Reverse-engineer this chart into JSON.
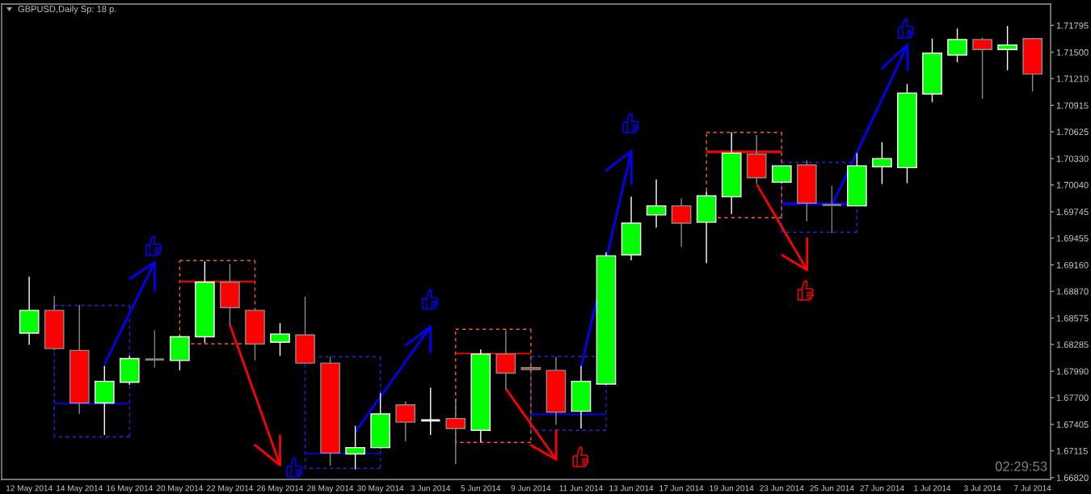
{
  "chart_data": {
    "type": "candlestick",
    "title": "GBPUSD,Daily Sp: 18 p.",
    "categories": [
      "12 May 2014",
      null,
      "14 May 2014",
      null,
      "16 May 2014",
      null,
      "20 May 2014",
      null,
      "22 May 2014",
      null,
      "26 May 2014",
      null,
      "28 May 2014",
      null,
      "30 May 2014",
      null,
      "3 Jun 2014",
      null,
      "5 Jun 2014",
      null,
      "9 Jun 2014",
      null,
      "11 Jun 2014",
      null,
      "13 Jun 2014",
      null,
      "17 Jun 2014",
      null,
      "19 Jun 2014",
      null,
      "23 Jun 2014",
      null,
      "25 Jun 2014",
      null,
      "27 Jun 2014",
      null,
      "1 Jul 2014",
      null,
      "3 Jul 2014",
      null,
      "7 Jul 2014"
    ],
    "ohlc": [
      [
        1.6841,
        1.6903,
        1.6828,
        1.6866
      ],
      [
        1.6866,
        1.6882,
        1.6822,
        1.6824
      ],
      [
        1.6822,
        1.6872,
        1.6752,
        1.6764
      ],
      [
        1.6764,
        1.6805,
        1.6729,
        1.6788
      ],
      [
        1.6787,
        1.6816,
        1.6784,
        1.6813
      ],
      [
        1.6812,
        1.6844,
        1.6803,
        1.6812
      ],
      [
        1.6811,
        1.6838,
        1.68,
        1.6837
      ],
      [
        1.6837,
        1.692,
        1.683,
        1.6897
      ],
      [
        1.6897,
        1.6917,
        1.685,
        1.6869
      ],
      [
        1.6866,
        1.6868,
        1.6811,
        1.6829
      ],
      [
        1.6831,
        1.6852,
        1.6816,
        1.684
      ],
      [
        1.6839,
        1.6881,
        1.6807,
        1.6808
      ],
      [
        1.6808,
        1.6815,
        1.6695,
        1.6709
      ],
      [
        1.6708,
        1.6739,
        1.6691,
        1.6715
      ],
      [
        1.6715,
        1.6775,
        1.6714,
        1.6752
      ],
      [
        1.6762,
        1.6766,
        1.6722,
        1.6743
      ],
      [
        1.6745,
        1.6781,
        1.6729,
        1.6745
      ],
      [
        1.6747,
        1.6769,
        1.6697,
        1.6736
      ],
      [
        1.6734,
        1.6823,
        1.6721,
        1.6818
      ],
      [
        1.6818,
        1.6844,
        1.6779,
        1.6797
      ],
      [
        1.6803,
        1.6805,
        1.6799,
        1.6801
      ],
      [
        1.68,
        1.6815,
        1.674,
        1.6754
      ],
      [
        1.6755,
        1.6805,
        1.6736,
        1.6788
      ],
      [
        1.6785,
        1.693,
        1.6784,
        1.6926
      ],
      [
        1.6927,
        1.6991,
        1.6921,
        1.6962
      ],
      [
        1.6971,
        1.701,
        1.6957,
        1.6981
      ],
      [
        1.6981,
        1.6989,
        1.6936,
        1.6962
      ],
      [
        1.6963,
        1.6997,
        1.6918,
        1.6992
      ],
      [
        1.6991,
        1.7062,
        1.6972,
        1.7039
      ],
      [
        1.7038,
        1.7059,
        1.7005,
        1.7012
      ],
      [
        1.7007,
        1.7025,
        1.7006,
        1.7025
      ],
      [
        1.7026,
        1.7031,
        1.6964,
        1.6984
      ],
      [
        1.6982,
        1.7003,
        1.6951,
        1.6982
      ],
      [
        1.6981,
        1.7039,
        1.6981,
        1.7025
      ],
      [
        1.7024,
        1.7051,
        1.7005,
        1.7033
      ],
      [
        1.7023,
        1.7115,
        1.7006,
        1.7105
      ],
      [
        1.7104,
        1.7165,
        1.7095,
        1.7149
      ],
      [
        1.7147,
        1.7176,
        1.7139,
        1.7164
      ],
      [
        1.7164,
        1.7166,
        1.7099,
        1.7153
      ],
      [
        1.7153,
        1.7179,
        1.713,
        1.7158
      ],
      [
        1.7165,
        1.7166,
        1.7107,
        1.7126
      ]
    ],
    "colors": [
      "#00ff00",
      "#ff0000",
      "#ff0000",
      "#00ff00",
      "#00ff00",
      "#808080",
      "#00ff00",
      "#00ff00",
      "#ff0000",
      "#ff0000",
      "#00ff00",
      "#ff0000",
      "#ff0000",
      "#00ff00",
      "#00ff00",
      "#ff0000",
      "#ffffff",
      "#ff0000",
      "#00ff00",
      "#ff0000",
      "#ff0000",
      "#ff0000",
      "#00ff00",
      "#00ff00",
      "#00ff00",
      "#00ff00",
      "#ff0000",
      "#00ff00",
      "#00ff00",
      "#ff0000",
      "#00ff00",
      "#ff0000",
      "#808080",
      "#00ff00",
      "#00ff00",
      "#00ff00",
      "#00ff00",
      "#00ff00",
      "#ff0000",
      "#00ff00",
      "#ff0000"
    ],
    "ylim": [
      1.668,
      1.7203
    ],
    "yticks": [
      1.71795,
      {
        "value": 1.715,
        "label": "1.71500"
      },
      {
        "value": 1.7121,
        "label": "1.71210"
      },
      1.70915,
      1.70625,
      {
        "value": 1.7033,
        "label": "1.70330"
      },
      {
        "value": 1.7004,
        "label": "1.70040"
      },
      1.69745,
      1.69455,
      {
        "value": 1.6916,
        "label": "1.69160"
      },
      {
        "value": 1.6887,
        "label": "1.68870"
      },
      1.68575,
      1.68285,
      {
        "value": 1.6799,
        "label": "1.67990"
      },
      {
        "value": 1.677,
        "label": "1.67700"
      },
      1.67405,
      1.67115,
      {
        "value": 1.6682,
        "label": "1.66820"
      }
    ],
    "annotations": [
      "02:29:53"
    ]
  }
}
